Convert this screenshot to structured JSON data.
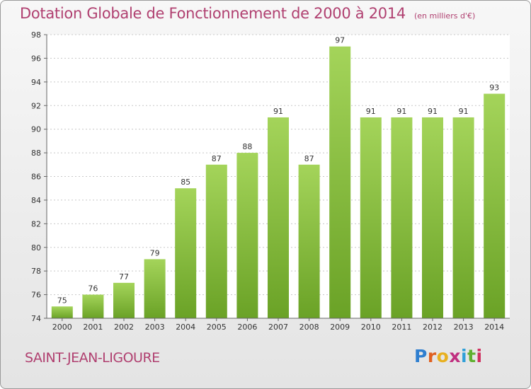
{
  "header": {
    "title": "Dotation Globale de Fonctionnement de 2000 à 2014",
    "unit": "(en milliers d'€)"
  },
  "commune": "SAINT-JEAN-LIGOURE",
  "logo": {
    "text": "Proxiti",
    "letter_colors": [
      "#2f7fd0",
      "#e06020",
      "#e8b020",
      "#c03080",
      "#2f9fd8",
      "#60b030",
      "#d03060"
    ]
  },
  "colors": {
    "bar_light": "#a4d45a",
    "bar_dark": "#6aa226",
    "grid": "#c8c8c8",
    "axis": "#666666",
    "text": "#333333"
  },
  "chart_data": {
    "type": "bar",
    "title": "Dotation Globale de Fonctionnement de 2000 à 2014",
    "categories": [
      "2000",
      "2001",
      "2002",
      "2003",
      "2004",
      "2005",
      "2006",
      "2007",
      "2008",
      "2009",
      "2010",
      "2011",
      "2012",
      "2013",
      "2014"
    ],
    "values": [
      75,
      76,
      77,
      79,
      85,
      87,
      88,
      91,
      87,
      97,
      91,
      91,
      91,
      91,
      93
    ],
    "ylim": [
      74,
      98
    ],
    "yticks": [
      74,
      76,
      78,
      80,
      82,
      84,
      86,
      88,
      90,
      92,
      94,
      96,
      98
    ],
    "grid": true,
    "data_labels": true
  }
}
